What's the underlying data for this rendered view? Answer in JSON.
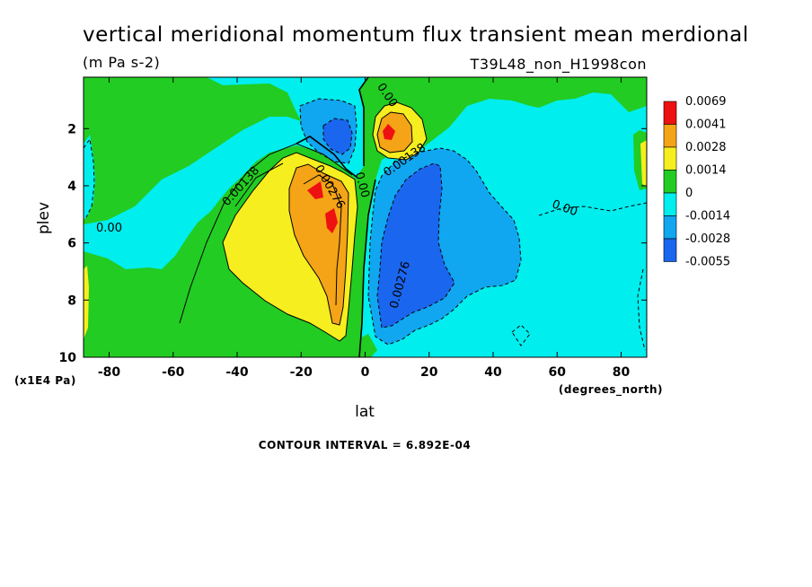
{
  "title": "vertical meridional momentum flux transient mean merdional",
  "units": "(m Pa s-2)",
  "run_label": "T39L48_non_H1998con",
  "contour_interval": "CONTOUR INTERVAL = 6.892E-04",
  "chart_data": {
    "type": "contour",
    "xlabel": "lat",
    "xunits": "(degrees_north)",
    "ylabel": "plev",
    "yunits": "(x1E4 Pa)",
    "xlim": [
      -88,
      88
    ],
    "ylim": [
      10,
      0.2
    ],
    "x_ticks": [
      -80,
      -60,
      -40,
      -20,
      0,
      20,
      40,
      60,
      80
    ],
    "x_tick_labels": [
      "-80",
      "-60",
      "-40",
      "-20",
      "0",
      "20",
      "40",
      "60",
      "80"
    ],
    "y_ticks": [
      2,
      4,
      6,
      8,
      10
    ],
    "y_tick_labels": [
      "2",
      "4",
      "6",
      "8",
      "10"
    ],
    "levels": [
      {
        "label": "0.0069",
        "color": "#ee1111"
      },
      {
        "label": "0.0041",
        "color": "#f4a416"
      },
      {
        "label": "0.0028",
        "color": "#f6ee1e"
      },
      {
        "label": "0.0014",
        "color": "#22cc22"
      },
      {
        "label": "0",
        "color": "#00eeee"
      },
      {
        "label": "-0.0014",
        "color": "#11a6f0"
      },
      {
        "label": "-0.0028",
        "color": "#1a66ee"
      },
      {
        "label": "-0.0055",
        "color": "#1a66ee"
      }
    ],
    "contour_labels": [
      {
        "text": "0.00",
        "lat": 6,
        "plev": 0.9
      },
      {
        "text": "0.00138",
        "lat": -38,
        "plev": 4.1
      },
      {
        "text": "0.00",
        "lat": -80,
        "plev": 5.6
      },
      {
        "text": "0.00276",
        "lat": -12,
        "plev": 4.1
      },
      {
        "text": "0.00",
        "lat": -2,
        "plev": 4.0
      },
      {
        "text": "0.00138",
        "lat": 13,
        "plev": 3.2
      },
      {
        "text": "0.00",
        "lat": 62,
        "plev": 4.9
      },
      {
        "text": "0.00276",
        "lat": 12,
        "plev": 7.5
      }
    ]
  }
}
